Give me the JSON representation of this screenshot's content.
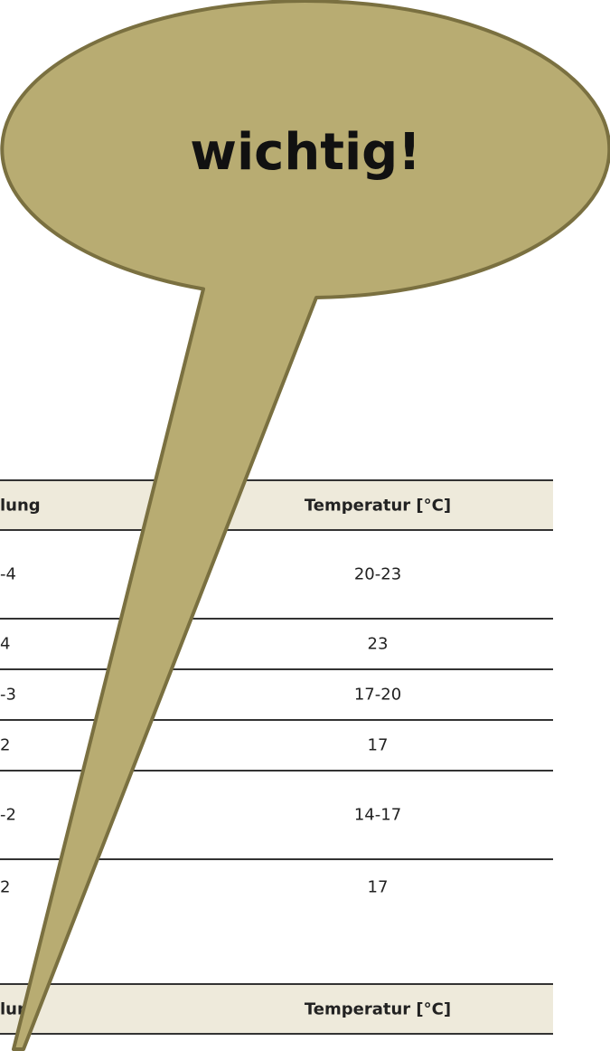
{
  "bubble": {
    "text": "wichtig!"
  },
  "tables": [
    {
      "header": [
        "lung",
        "Temperatur [°C]"
      ],
      "rows": [
        [
          "-4",
          "20-23"
        ],
        [
          "4",
          "23"
        ],
        [
          "-3",
          "17-20"
        ],
        [
          "2",
          "17"
        ],
        [
          "-2",
          "14-17"
        ],
        [
          "2",
          "17"
        ]
      ]
    },
    {
      "header": [
        "lung",
        "Temperatur [°C]"
      ],
      "rows": []
    }
  ]
}
